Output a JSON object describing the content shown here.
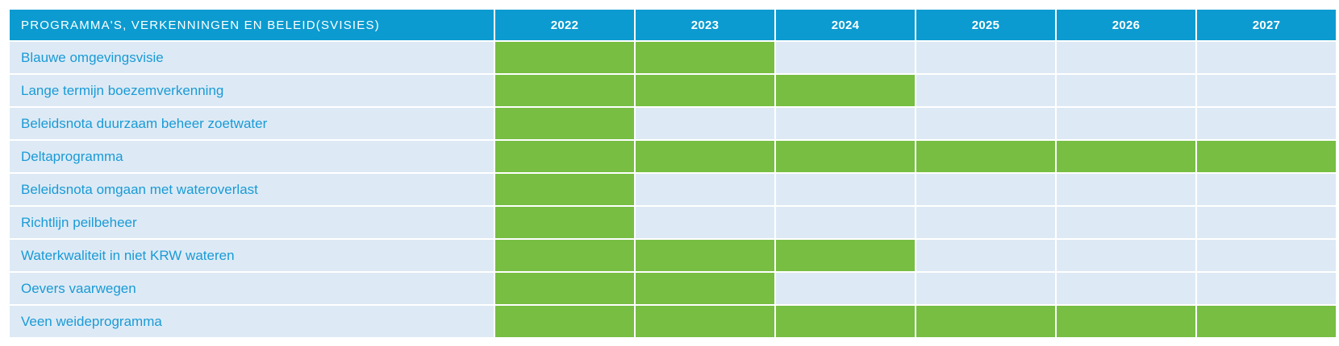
{
  "header": {
    "title": "PROGRAMMA'S, VERKENNINGEN EN BELEID(SVISIES)",
    "years": [
      "2022",
      "2023",
      "2024",
      "2025",
      "2026",
      "2027"
    ]
  },
  "rows": [
    {
      "label": "Blauwe omgevingsvisie",
      "active": [
        true,
        true,
        false,
        false,
        false,
        false
      ]
    },
    {
      "label": "Lange termijn boezemverkenning",
      "active": [
        true,
        true,
        true,
        false,
        false,
        false
      ]
    },
    {
      "label": "Beleidsnota duurzaam beheer zoetwater",
      "active": [
        true,
        false,
        false,
        false,
        false,
        false
      ]
    },
    {
      "label": "Deltaprogramma",
      "active": [
        true,
        true,
        true,
        true,
        true,
        true
      ]
    },
    {
      "label": "Beleidsnota omgaan met wateroverlast",
      "active": [
        true,
        false,
        false,
        false,
        false,
        false
      ]
    },
    {
      "label": "Richtlijn peilbeheer",
      "active": [
        true,
        false,
        false,
        false,
        false,
        false
      ]
    },
    {
      "label": "Waterkwaliteit in niet KRW wateren",
      "active": [
        true,
        true,
        true,
        false,
        false,
        false
      ]
    },
    {
      "label": "Oevers vaarwegen",
      "active": [
        true,
        true,
        false,
        false,
        false,
        false
      ]
    },
    {
      "label": "Veen weideprogramma",
      "active": [
        true,
        true,
        true,
        true,
        true,
        true
      ]
    }
  ],
  "colors": {
    "header_bg": "#0b9bd0",
    "row_bg": "#ddeaf5",
    "active_bg": "#77be43",
    "label_text": "#1a9ad6"
  }
}
